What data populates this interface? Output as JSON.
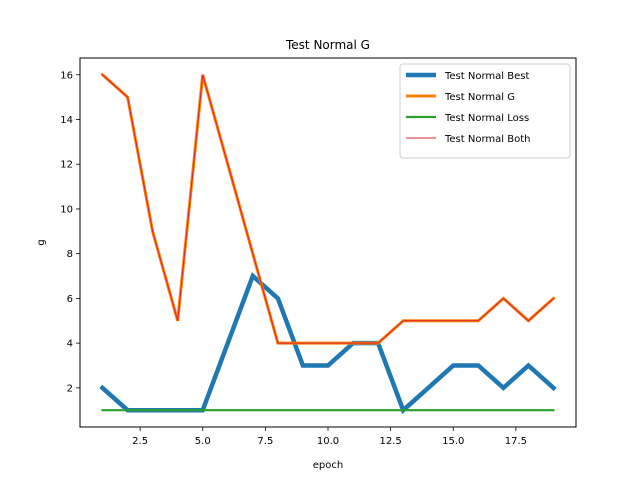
{
  "chart_data": {
    "type": "line",
    "title": "Test Normal G",
    "xlabel": "epoch",
    "ylabel": "g",
    "xlim": [
      0.1,
      19.9
    ],
    "ylim": [
      0.25,
      16.75
    ],
    "xticks": [
      2.5,
      5.0,
      7.5,
      10.0,
      12.5,
      15.0,
      17.5
    ],
    "xtick_labels": [
      "2.5",
      "5.0",
      "7.5",
      "10.0",
      "12.5",
      "15.0",
      "17.5"
    ],
    "yticks": [
      2,
      4,
      6,
      8,
      10,
      12,
      14,
      16
    ],
    "ytick_labels": [
      "2",
      "4",
      "6",
      "8",
      "10",
      "12",
      "14",
      "16"
    ],
    "grid": false,
    "legend_position": "top-right",
    "x": [
      1,
      2,
      3,
      4,
      5,
      6,
      7,
      8,
      9,
      10,
      11,
      12,
      13,
      14,
      15,
      16,
      17,
      18,
      19
    ],
    "series": [
      {
        "name": "Test Normal Best",
        "color": "#1f77b4",
        "weight": "heavy",
        "values": [
          2,
          1,
          1,
          1,
          1,
          4,
          7,
          6,
          3,
          3,
          4,
          4,
          1,
          2,
          3,
          3,
          2,
          3,
          2
        ]
      },
      {
        "name": "Test Normal G",
        "color": "#ff7f0e",
        "weight": "bold",
        "values": [
          16,
          15,
          9,
          5,
          16,
          12,
          8,
          4,
          4,
          4,
          4,
          4,
          5,
          5,
          5,
          5,
          6,
          5,
          6
        ]
      },
      {
        "name": "Test Normal Loss",
        "color": "#2ca02c",
        "weight": "medium",
        "values": [
          1,
          1,
          1,
          1,
          1,
          1,
          1,
          1,
          1,
          1,
          1,
          1,
          1,
          1,
          1,
          1,
          1,
          1,
          1
        ]
      },
      {
        "name": "Test Normal Both",
        "color": "#d62728",
        "weight": "thin",
        "values": [
          16,
          15,
          9,
          5,
          16,
          12,
          8,
          4,
          4,
          4,
          4,
          4,
          5,
          5,
          5,
          5,
          6,
          5,
          6
        ]
      }
    ]
  }
}
